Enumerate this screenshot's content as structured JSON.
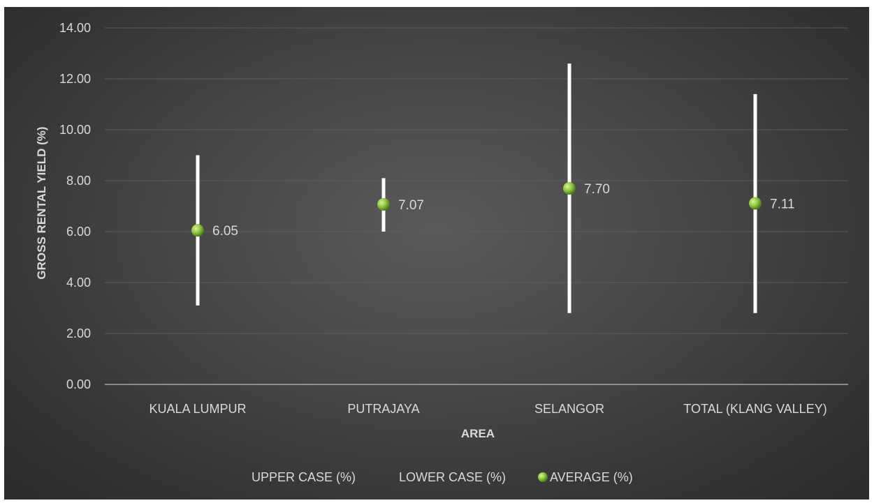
{
  "chart_data": {
    "type": "scatter",
    "title": "",
    "xlabel": "AREA",
    "ylabel": "GROSS RENTAL YIELD (%)",
    "ylim": [
      0,
      14
    ],
    "yticks": [
      "0.00",
      "2.00",
      "4.00",
      "6.00",
      "8.00",
      "10.00",
      "12.00",
      "14.00"
    ],
    "categories": [
      "KUALA LUMPUR",
      "PUTRAJAYA",
      "SELANGOR",
      "TOTAL (KLANG VALLEY)"
    ],
    "series": [
      {
        "name": "UPPER CASE (%)",
        "values": [
          9.0,
          8.1,
          12.6,
          11.4
        ]
      },
      {
        "name": "LOWER CASE (%)",
        "values": [
          3.1,
          6.0,
          2.8,
          2.8
        ]
      },
      {
        "name": "AVERAGE (%)",
        "values": [
          6.05,
          7.07,
          7.7,
          7.11
        ]
      }
    ],
    "data_labels": [
      "6.05",
      "7.07",
      "7.70",
      "7.11"
    ],
    "grid": true,
    "legend_position": "bottom",
    "colors": {
      "background": "#404040",
      "range_line": "#ffffff",
      "average_marker": "#8dc63f",
      "text": "#d9d9d9",
      "gridline": "#5c5c5c"
    }
  }
}
